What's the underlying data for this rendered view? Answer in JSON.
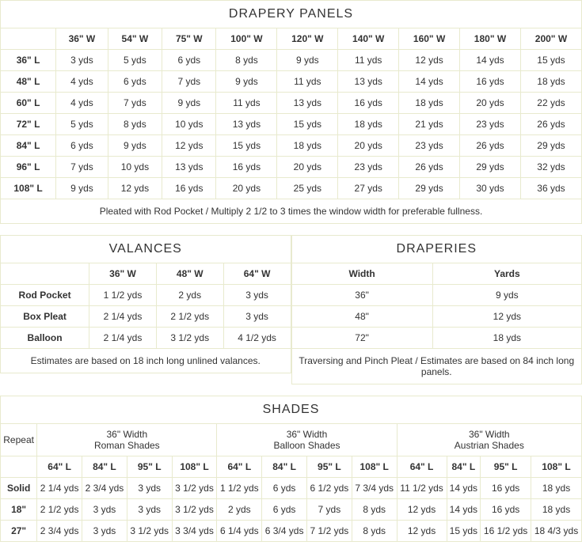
{
  "drapery_panels": {
    "title": "DRAPERY PANELS",
    "widths": [
      "36\" W",
      "54\" W",
      "75\" W",
      "100\" W",
      "120\" W",
      "140\" W",
      "160\" W",
      "180\" W",
      "200\" W"
    ],
    "lengths": [
      "36\" L",
      "48\" L",
      "60\" L",
      "72\" L",
      "84\" L",
      "96\" L",
      "108\" L"
    ],
    "rows": [
      [
        "3 yds",
        "5 yds",
        "6 yds",
        "8 yds",
        "9 yds",
        "11 yds",
        "12 yds",
        "14 yds",
        "15 yds"
      ],
      [
        "4 yds",
        "6 yds",
        "7 yds",
        "9 yds",
        "11 yds",
        "13 yds",
        "14 yds",
        "16 yds",
        "18 yds"
      ],
      [
        "4 yds",
        "7 yds",
        "9 yds",
        "11 yds",
        "13 yds",
        "16 yds",
        "18 yds",
        "20 yds",
        "22 yds"
      ],
      [
        "5 yds",
        "8 yds",
        "10 yds",
        "13 yds",
        "15 yds",
        "18 yds",
        "21 yds",
        "23 yds",
        "26 yds"
      ],
      [
        "6 yds",
        "9 yds",
        "12 yds",
        "15 yds",
        "18 yds",
        "20 yds",
        "23 yds",
        "26 yds",
        "29 yds"
      ],
      [
        "7 yds",
        "10 yds",
        "13 yds",
        "16 yds",
        "20 yds",
        "23 yds",
        "26 yds",
        "29 yds",
        "32 yds"
      ],
      [
        "9 yds",
        "12 yds",
        "16 yds",
        "20 yds",
        "25 yds",
        "27 yds",
        "29 yds",
        "30 yds",
        "36 yds"
      ]
    ],
    "note": "Pleated with Rod Pocket  / Multiply 2 1/2 to 3 times the window width for preferable fullness."
  },
  "valances": {
    "title": "VALANCES",
    "widths": [
      "36\" W",
      "48\" W",
      "64\" W"
    ],
    "types": [
      "Rod Pocket",
      "Box Pleat",
      "Balloon"
    ],
    "rows": [
      [
        "1 1/2 yds",
        "2 yds",
        "3 yds"
      ],
      [
        "2 1/4 yds",
        "2 1/2 yds",
        "3 yds"
      ],
      [
        "2 1/4 yds",
        "3 1/2 yds",
        "4 1/2 yds"
      ]
    ],
    "note": "Estimates are based on 18 inch long unlined valances."
  },
  "draperies": {
    "title": "DRAPERIES",
    "headers": [
      "Width",
      "Yards"
    ],
    "rows": [
      [
        "36\"",
        "9 yds"
      ],
      [
        "48\"",
        "12 yds"
      ],
      [
        "72\"",
        "18 yds"
      ]
    ],
    "note": "Traversing and Pinch Pleat / Estimates are based on 84 inch long panels."
  },
  "shades": {
    "title": "SHADES",
    "repeat_label": "Repeat",
    "groups": [
      "36\" Width\nRoman Shades",
      "36\" Width\nBalloon Shades",
      "36\" Width\nAustrian Shades"
    ],
    "lengths": [
      "64\" L",
      "84\" L",
      "95\" L",
      "108\" L",
      "64\" L",
      "84\" L",
      "95\" L",
      "108\" L",
      "64\" L",
      "84\" L",
      "95\" L",
      "108\" L"
    ],
    "row_labels": [
      "Solid",
      "18\"",
      "27\""
    ],
    "rows": [
      [
        "2 1/4 yds",
        "2 3/4 yds",
        "3 yds",
        "3 1/2 yds",
        "1 1/2 yds",
        "6 yds",
        "6 1/2 yds",
        "7 3/4 yds",
        "11 1/2 yds",
        "14 yds",
        "16 yds",
        "18 yds"
      ],
      [
        "2 1/2 yds",
        "3 yds",
        "3 yds",
        "3 1/2 yds",
        "2 yds",
        "6 yds",
        "7 yds",
        "8 yds",
        "12 yds",
        "14 yds",
        "16 yds",
        "18 yds"
      ],
      [
        "2 3/4 yds",
        "3 yds",
        "3 1/2 yds",
        "3 3/4 yds",
        "6 1/4 yds",
        "6 3/4 yds",
        "7 1/2 yds",
        "8 yds",
        "12 yds",
        "15 yds",
        "16 1/2 yds",
        "18 4/3 yds"
      ]
    ]
  }
}
